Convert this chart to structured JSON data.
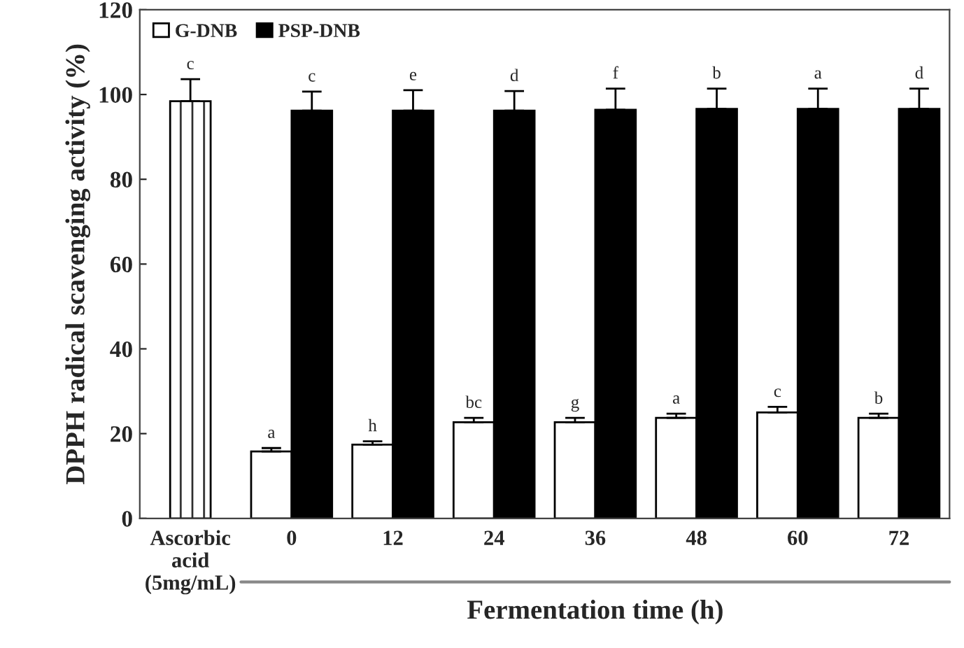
{
  "chart_data": {
    "type": "bar",
    "categories": [
      "Ascorbic\nacid\n(5mg/mL)",
      "0",
      "12",
      "24",
      "36",
      "48",
      "60",
      "72"
    ],
    "xlabel": "Fermentation time (h)",
    "ylabel": "DPPH radical scavenging activity (%)",
    "series": [
      {
        "color": "#000000",
        "values": [
          98.4,
          null,
          null,
          null,
          null,
          null,
          null,
          null
        ],
        "errors": [
          5.2,
          null,
          null,
          null,
          null,
          null,
          null,
          null
        ],
        "value_labels": [
          "c",
          null,
          null,
          null,
          null,
          null,
          null,
          null
        ]
      },
      {
        "name": "G-DNB",
        "color": "#ffffff",
        "values": [
          null,
          15.8,
          17.4,
          22.7,
          22.7,
          23.7,
          25.0,
          23.7
        ],
        "errors": [
          null,
          0.8,
          0.8,
          1.0,
          1.0,
          1.0,
          1.3,
          1.0
        ],
        "value_labels": [
          null,
          "a",
          "h",
          "bc",
          "g",
          "a",
          "c",
          "b"
        ]
      },
      {
        "name": "PSP-DNB",
        "color": "#000000",
        "values": [
          null,
          96.2,
          96.2,
          96.2,
          96.4,
          96.6,
          96.6,
          96.6
        ],
        "errors": [
          null,
          4.5,
          4.8,
          4.6,
          5.0,
          4.8,
          4.8,
          4.8
        ],
        "value_labels": [
          null,
          "c",
          "e",
          "d",
          "f",
          "b",
          "a",
          "d"
        ]
      }
    ],
    "ylim": [
      0,
      120
    ],
    "yticks": [
      0,
      20,
      40,
      60,
      80,
      100,
      120
    ],
    "grid": false,
    "legend": "top left"
  }
}
